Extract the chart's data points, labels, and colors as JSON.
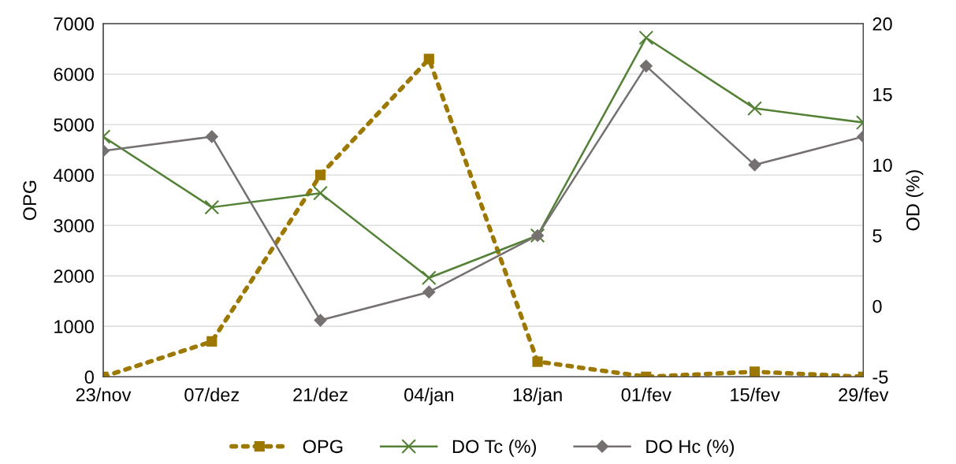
{
  "chart_data": {
    "type": "line",
    "ylabel": "OPG",
    "y2label": "OD (%)",
    "categories": [
      "23/nov",
      "07/dez",
      "21/dez",
      "04/jan",
      "18/jan",
      "01/fev",
      "15/fev",
      "29/fev"
    ],
    "series": [
      {
        "name": "OPG",
        "color": "#9c7800",
        "marker": "square",
        "line_style": "dotted",
        "values": [
          0,
          700,
          4000,
          6300,
          300,
          0,
          100,
          0
        ]
      },
      {
        "name": "DO Tc (%)",
        "color": "#538135",
        "marker": "cross",
        "line_style": "solid",
        "axis": "y2",
        "values": [
          12,
          7,
          8,
          2,
          5,
          19,
          14,
          13
        ]
      },
      {
        "name": "DO Hc (%)",
        "color": "#767171",
        "marker": "diamond",
        "line_style": "solid",
        "axis": "y2",
        "values": [
          11,
          12,
          -1,
          1,
          5,
          17,
          10,
          12
        ]
      }
    ],
    "ylim": [
      0,
      7000
    ],
    "yticks": [
      0,
      1000,
      2000,
      3000,
      4000,
      5000,
      6000,
      7000
    ],
    "y2lim": [
      -5,
      20
    ],
    "y2ticks": [
      -5,
      0,
      5,
      10,
      15,
      20
    ],
    "grid": "y",
    "legend": "bottom"
  }
}
